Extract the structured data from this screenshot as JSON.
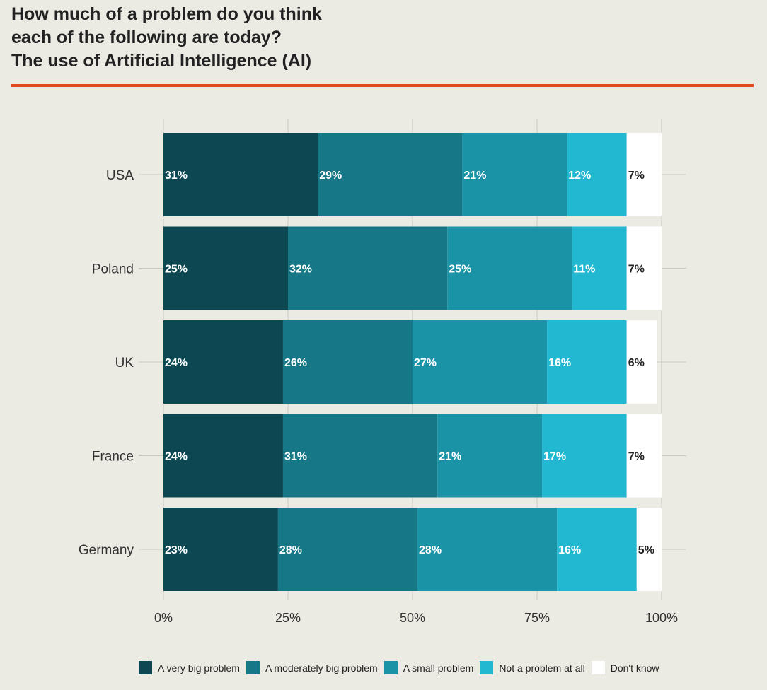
{
  "title": {
    "line1": "How much of a problem do you think",
    "line2": "each of the following are today?",
    "line3": "The use of Artificial Intelligence (AI)"
  },
  "colors": {
    "background": "#ecebe3",
    "accent_rule": "#e2491c",
    "very_big": "#0c4752",
    "moderately_big": "#167786",
    "small": "#1b93a6",
    "not_a_problem": "#22b8d1",
    "dont_know": "#ffffff",
    "gridline": "#c9c8c0",
    "axis_text": "#333333"
  },
  "chart_data": {
    "type": "bar",
    "orientation": "horizontal",
    "stacked": true,
    "title": "How much of a problem do you think each of the following are today? The use of Artificial Intelligence (AI)",
    "categories": [
      "USA",
      "Poland",
      "UK",
      "France",
      "Germany"
    ],
    "series": [
      {
        "name": "A very big problem",
        "color": "#0c4752",
        "label_color": "#ffffff",
        "values": [
          31,
          25,
          24,
          24,
          23
        ]
      },
      {
        "name": "A moderately big problem",
        "color": "#167786",
        "label_color": "#ffffff",
        "values": [
          29,
          32,
          26,
          31,
          28
        ]
      },
      {
        "name": "A small problem",
        "color": "#1b93a6",
        "label_color": "#ffffff",
        "values": [
          21,
          25,
          27,
          21,
          28
        ]
      },
      {
        "name": "Not a problem at all",
        "color": "#22b8d1",
        "label_color": "#ffffff",
        "values": [
          12,
          11,
          16,
          17,
          16
        ]
      },
      {
        "name": "Don't know",
        "color": "#ffffff",
        "label_color": "#222222",
        "values": [
          7,
          7,
          6,
          7,
          5
        ]
      }
    ],
    "value_suffix": "%",
    "xlim": [
      0,
      100
    ],
    "xticks": [
      0,
      25,
      50,
      75,
      100
    ],
    "xtick_labels": [
      "0%",
      "25%",
      "50%",
      "75%",
      "100%"
    ],
    "grid": true,
    "legend_position": "bottom",
    "xlabel": "",
    "ylabel": ""
  }
}
